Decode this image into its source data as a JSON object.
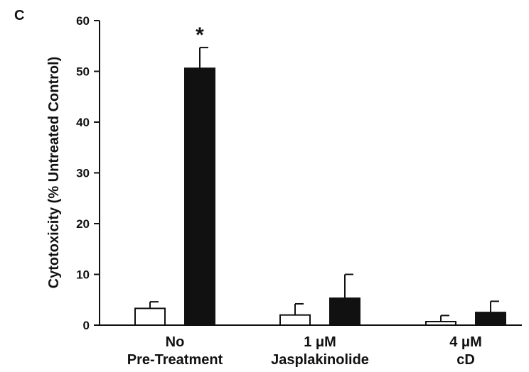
{
  "panel_label": "C",
  "chart_data": {
    "type": "bar",
    "ylabel": "Cytotoxicity (% Untreated Control)",
    "xlabel": "",
    "ylim": [
      0,
      60
    ],
    "yticks": [
      0,
      10,
      20,
      30,
      40,
      50,
      60
    ],
    "grid": false,
    "legend": "none",
    "categories": [
      [
        "No",
        "Pre-Treatment"
      ],
      [
        "1 μM",
        "Jasplakinolide"
      ],
      [
        "4 μM",
        "cD"
      ]
    ],
    "series": [
      {
        "fill": "#ffffff",
        "stroke": "#111111",
        "values": [
          3.3,
          2.0,
          0.7
        ],
        "error": [
          1.3,
          2.2,
          1.2
        ]
      },
      {
        "fill": "#111111",
        "stroke": "#111111",
        "values": [
          50.6,
          5.3,
          2.5
        ],
        "error": [
          4.1,
          4.7,
          2.2
        ]
      }
    ],
    "annotations": [
      {
        "text": "*",
        "category_index": 0,
        "series_index": 1
      }
    ],
    "colors": {
      "axis": "#111111",
      "open_bar": "#ffffff",
      "filled_bar": "#111111"
    }
  }
}
